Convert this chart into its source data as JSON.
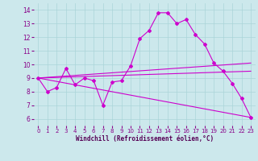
{
  "title": "",
  "xlabel": "Windchill (Refroidissement éolien,°C)",
  "ylabel": "",
  "bg_color": "#cce8ec",
  "line_color": "#cc00cc",
  "xlim": [
    -0.5,
    23.5
  ],
  "ylim": [
    5.5,
    14.5
  ],
  "xticks": [
    0,
    1,
    2,
    3,
    4,
    5,
    6,
    7,
    8,
    9,
    10,
    11,
    12,
    13,
    14,
    15,
    16,
    17,
    18,
    19,
    20,
    21,
    22,
    23
  ],
  "yticks": [
    6,
    7,
    8,
    9,
    10,
    11,
    12,
    13,
    14
  ],
  "line1_x": [
    0,
    1,
    2,
    3,
    4,
    5,
    6,
    7,
    8,
    9,
    10,
    11,
    12,
    13,
    14,
    15,
    16,
    17,
    18,
    19,
    20,
    21,
    22,
    23
  ],
  "line1_y": [
    9.0,
    8.0,
    8.3,
    9.7,
    8.5,
    9.0,
    8.8,
    7.0,
    8.7,
    8.8,
    9.9,
    11.9,
    12.5,
    13.8,
    13.8,
    13.0,
    13.3,
    12.2,
    11.5,
    10.1,
    9.5,
    8.6,
    7.5,
    6.1
  ],
  "line2": [
    [
      0,
      9.0
    ],
    [
      23,
      6.1
    ]
  ],
  "line3": [
    [
      0,
      9.0
    ],
    [
      23,
      9.5
    ]
  ],
  "line4": [
    [
      0,
      9.0
    ],
    [
      23,
      10.1
    ]
  ],
  "marker": "D",
  "markersize": 2.0,
  "linewidth": 0.8,
  "tick_fontsize": 5.0,
  "xlabel_fontsize": 5.5
}
